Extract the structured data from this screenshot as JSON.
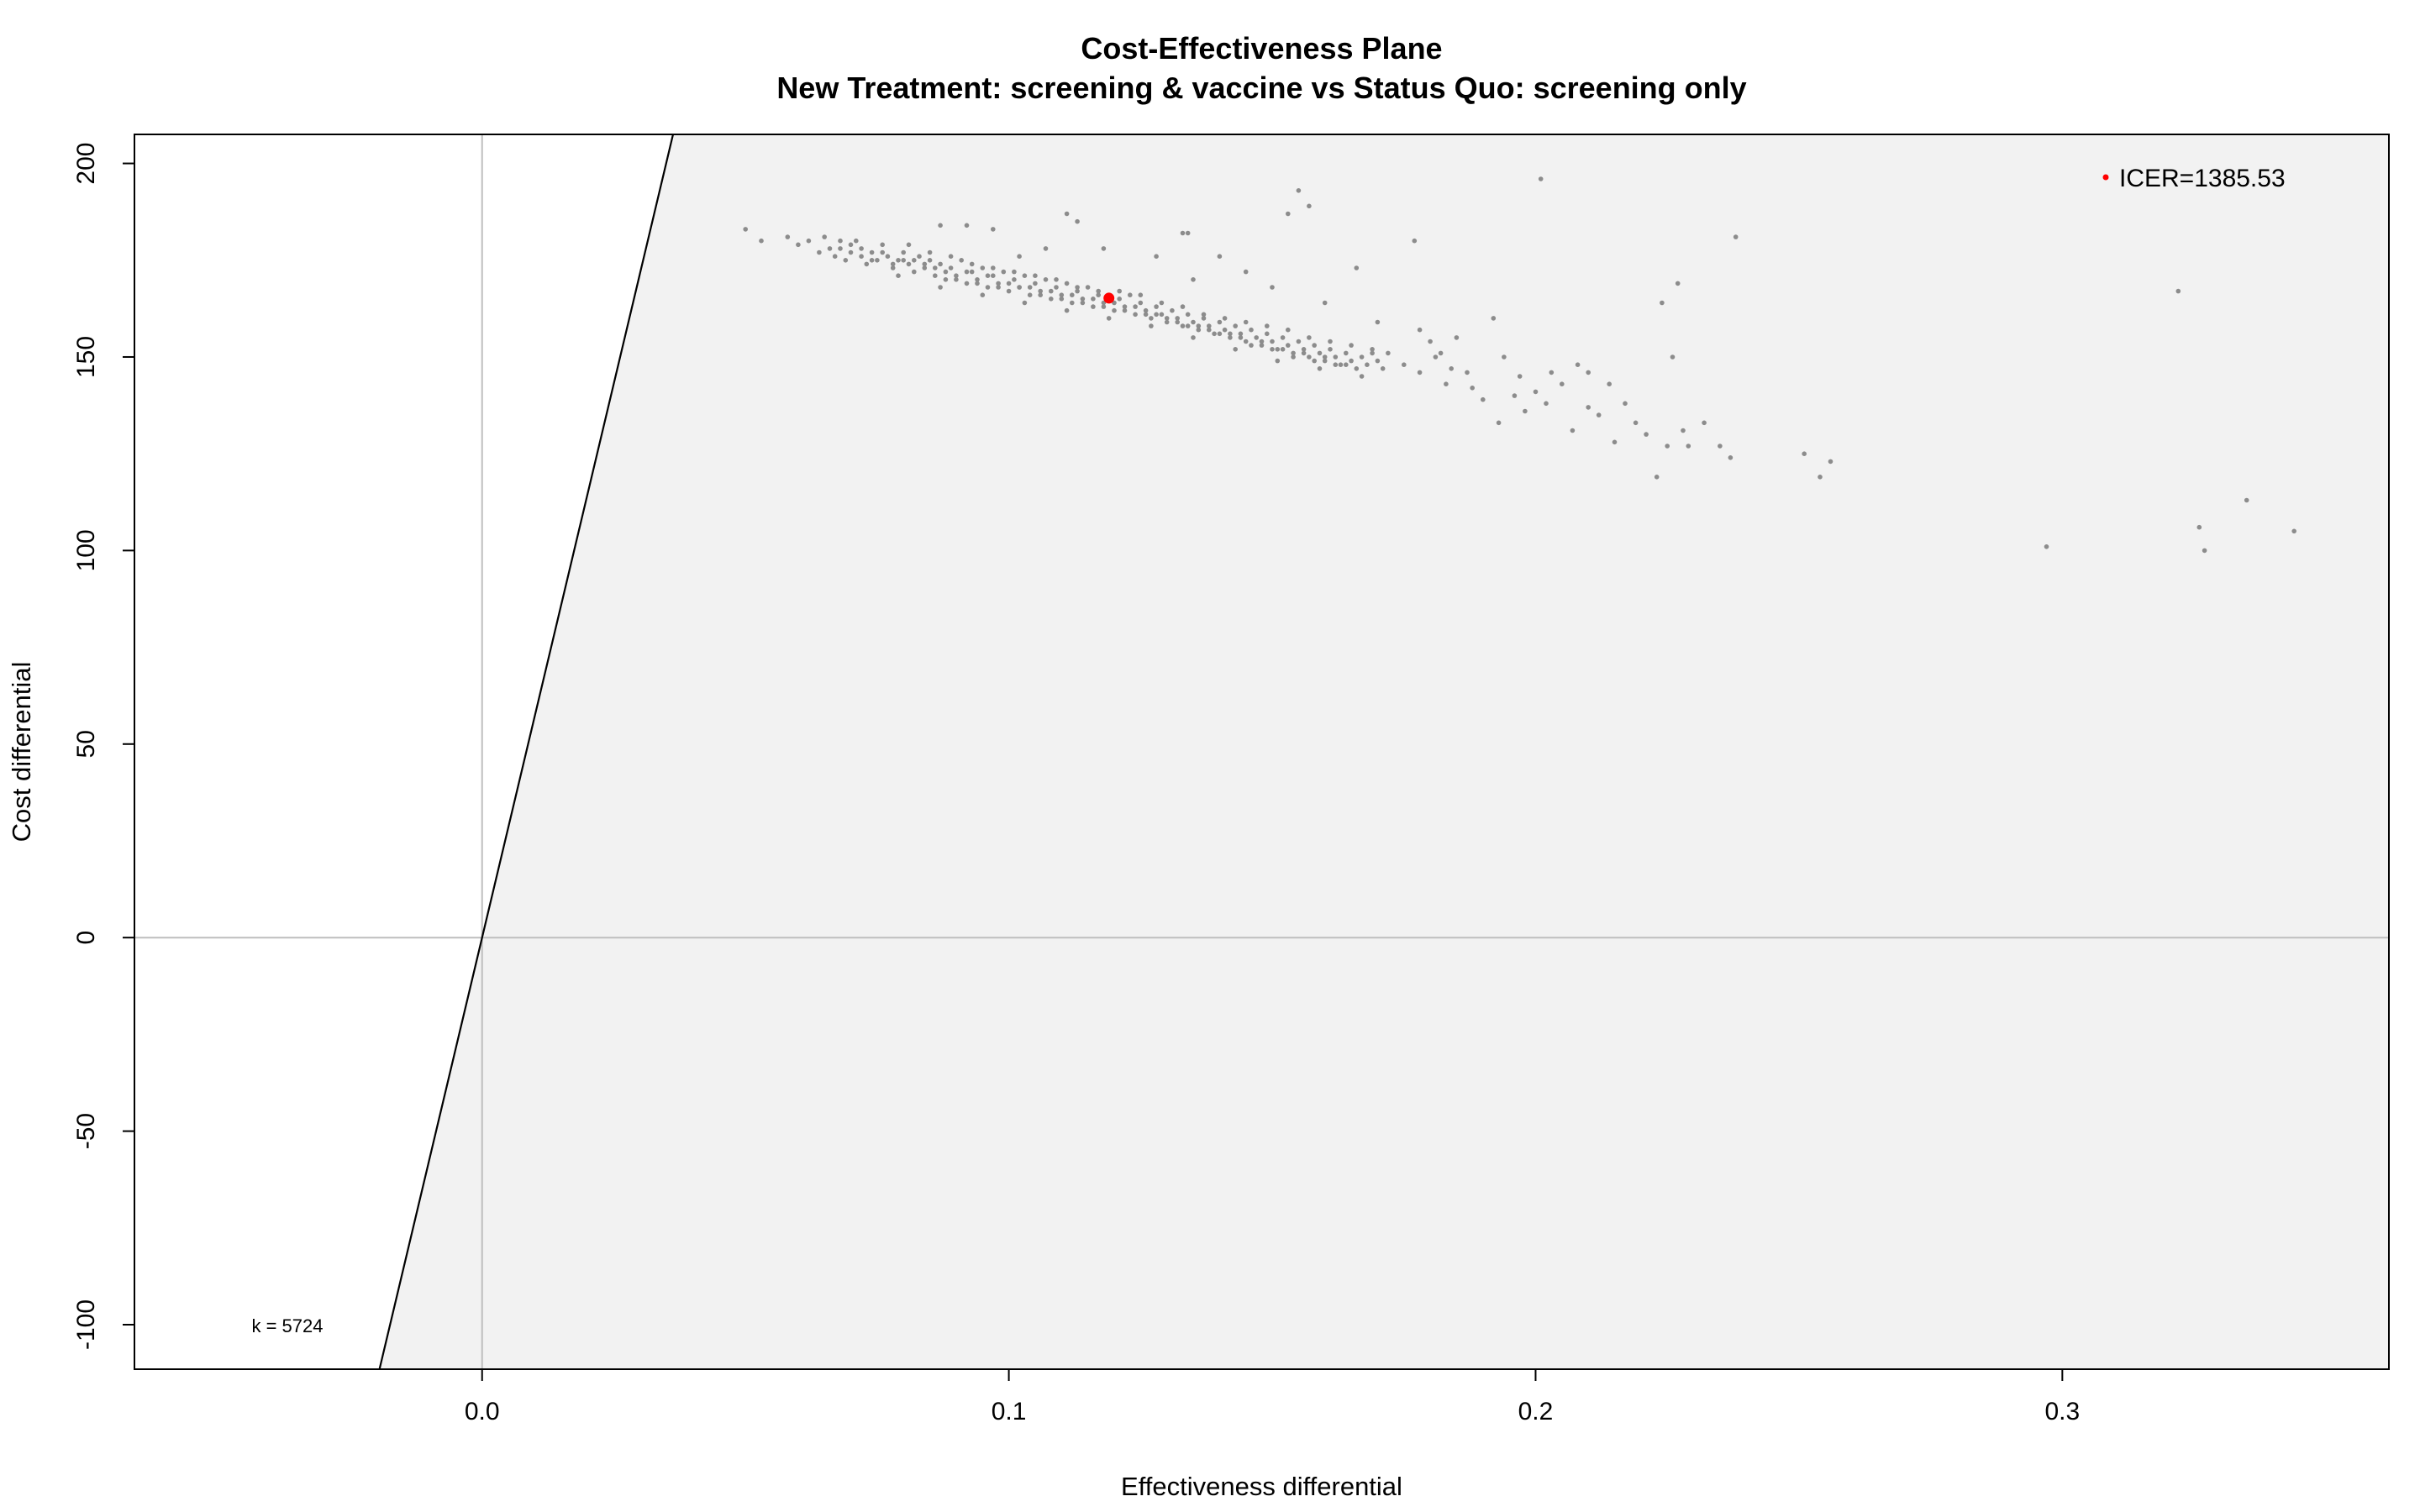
{
  "chart_data": {
    "type": "scatter",
    "title": "Cost-Effectiveness Plane",
    "subtitle": "New Treatment: screening & vaccine vs Status Quo: screening only",
    "xlabel": "Effectiveness differential",
    "ylabel": "Cost differential",
    "xlim": [
      -0.066,
      0.362
    ],
    "ylim": [
      -111.5,
      207.5
    ],
    "x_ticks": [
      0.0,
      0.1,
      0.2,
      0.3
    ],
    "x_tick_labels": [
      "0.0",
      "0.1",
      "0.2",
      "0.3"
    ],
    "y_ticks": [
      -100,
      -50,
      0,
      50,
      100,
      150,
      200
    ],
    "y_tick_labels": [
      "-100",
      "-50",
      "0",
      "50",
      "100",
      "150",
      "200"
    ],
    "wtp_k": 5724,
    "wtp_label": "k = 5724",
    "icer_label": "ICER=1385.53",
    "icer_point": {
      "x": 0.119,
      "y": 165.2
    },
    "colors": {
      "points": "#8c8c8c",
      "icer": "#ff0000",
      "acceptability_region": "#f2f2f2",
      "reference_lines": "#bebebe",
      "wtp_line": "#000000"
    },
    "grid": false,
    "series": [
      {
        "name": "",
        "points": [
          [
            0.05,
            183
          ],
          [
            0.053,
            180
          ],
          [
            0.058,
            181
          ],
          [
            0.06,
            179
          ],
          [
            0.062,
            180
          ],
          [
            0.064,
            177
          ],
          [
            0.065,
            181
          ],
          [
            0.066,
            178
          ],
          [
            0.067,
            176
          ],
          [
            0.068,
            178
          ],
          [
            0.069,
            175
          ],
          [
            0.07,
            177
          ],
          [
            0.071,
            180
          ],
          [
            0.072,
            176
          ],
          [
            0.073,
            174
          ],
          [
            0.074,
            177
          ],
          [
            0.075,
            175
          ],
          [
            0.076,
            179
          ],
          [
            0.077,
            176
          ],
          [
            0.078,
            173
          ],
          [
            0.079,
            175
          ],
          [
            0.08,
            177
          ],
          [
            0.081,
            174
          ],
          [
            0.082,
            172
          ],
          [
            0.083,
            176
          ],
          [
            0.084,
            173
          ],
          [
            0.085,
            175
          ],
          [
            0.086,
            171
          ],
          [
            0.087,
            174
          ],
          [
            0.088,
            170
          ],
          [
            0.089,
            173
          ],
          [
            0.09,
            171
          ],
          [
            0.091,
            175
          ],
          [
            0.092,
            169
          ],
          [
            0.093,
            172
          ],
          [
            0.094,
            170
          ],
          [
            0.095,
            173
          ],
          [
            0.096,
            168
          ],
          [
            0.097,
            171
          ],
          [
            0.098,
            169
          ],
          [
            0.099,
            172
          ],
          [
            0.1,
            167
          ],
          [
            0.101,
            170
          ],
          [
            0.102,
            168
          ],
          [
            0.103,
            171
          ],
          [
            0.104,
            166
          ],
          [
            0.105,
            169
          ],
          [
            0.106,
            167
          ],
          [
            0.107,
            170
          ],
          [
            0.108,
            165
          ],
          [
            0.109,
            168
          ],
          [
            0.11,
            166
          ],
          [
            0.111,
            169
          ],
          [
            0.112,
            164
          ],
          [
            0.113,
            167
          ],
          [
            0.114,
            165
          ],
          [
            0.115,
            168
          ],
          [
            0.116,
            163
          ],
          [
            0.117,
            166
          ],
          [
            0.118,
            164
          ],
          [
            0.12,
            162
          ],
          [
            0.121,
            165
          ],
          [
            0.122,
            163
          ],
          [
            0.123,
            166
          ],
          [
            0.124,
            161
          ],
          [
            0.125,
            164
          ],
          [
            0.126,
            162
          ],
          [
            0.127,
            160
          ],
          [
            0.128,
            163
          ],
          [
            0.129,
            161
          ],
          [
            0.13,
            159
          ],
          [
            0.131,
            162
          ],
          [
            0.132,
            160
          ],
          [
            0.133,
            158
          ],
          [
            0.134,
            161
          ],
          [
            0.135,
            159
          ],
          [
            0.136,
            157
          ],
          [
            0.137,
            160
          ],
          [
            0.138,
            158
          ],
          [
            0.139,
            156
          ],
          [
            0.14,
            159
          ],
          [
            0.141,
            157
          ],
          [
            0.142,
            155
          ],
          [
            0.143,
            158
          ],
          [
            0.144,
            156
          ],
          [
            0.145,
            154
          ],
          [
            0.146,
            157
          ],
          [
            0.147,
            155
          ],
          [
            0.148,
            153
          ],
          [
            0.149,
            156
          ],
          [
            0.15,
            154
          ],
          [
            0.151,
            152
          ],
          [
            0.152,
            155
          ],
          [
            0.153,
            153
          ],
          [
            0.154,
            151
          ],
          [
            0.155,
            154
          ],
          [
            0.156,
            152
          ],
          [
            0.157,
            150
          ],
          [
            0.158,
            153
          ],
          [
            0.159,
            151
          ],
          [
            0.16,
            149
          ],
          [
            0.161,
            152
          ],
          [
            0.162,
            150
          ],
          [
            0.163,
            148
          ],
          [
            0.164,
            151
          ],
          [
            0.165,
            149
          ],
          [
            0.166,
            147
          ],
          [
            0.167,
            150
          ],
          [
            0.168,
            148
          ],
          [
            0.169,
            152
          ],
          [
            0.17,
            149
          ],
          [
            0.171,
            147
          ],
          [
            0.172,
            151
          ],
          [
            0.07,
            179
          ],
          [
            0.072,
            178
          ],
          [
            0.074,
            175
          ],
          [
            0.076,
            177
          ],
          [
            0.078,
            174
          ],
          [
            0.08,
            175
          ],
          [
            0.082,
            175
          ],
          [
            0.084,
            174
          ],
          [
            0.086,
            173
          ],
          [
            0.088,
            172
          ],
          [
            0.09,
            170
          ],
          [
            0.092,
            172
          ],
          [
            0.094,
            169
          ],
          [
            0.096,
            171
          ],
          [
            0.098,
            168
          ],
          [
            0.1,
            169
          ],
          [
            0.102,
            168
          ],
          [
            0.104,
            168
          ],
          [
            0.106,
            166
          ],
          [
            0.108,
            167
          ],
          [
            0.11,
            165
          ],
          [
            0.112,
            166
          ],
          [
            0.114,
            164
          ],
          [
            0.116,
            165
          ],
          [
            0.118,
            163
          ],
          [
            0.12,
            164
          ],
          [
            0.122,
            162
          ],
          [
            0.124,
            163
          ],
          [
            0.126,
            161
          ],
          [
            0.128,
            161
          ],
          [
            0.13,
            160
          ],
          [
            0.132,
            159
          ],
          [
            0.134,
            158
          ],
          [
            0.136,
            158
          ],
          [
            0.138,
            157
          ],
          [
            0.14,
            156
          ],
          [
            0.142,
            156
          ],
          [
            0.144,
            155
          ],
          [
            0.146,
            153
          ],
          [
            0.148,
            154
          ],
          [
            0.15,
            152
          ],
          [
            0.152,
            152
          ],
          [
            0.154,
            150
          ],
          [
            0.156,
            151
          ],
          [
            0.158,
            149
          ],
          [
            0.16,
            150
          ],
          [
            0.162,
            148
          ],
          [
            0.164,
            148
          ],
          [
            0.068,
            180
          ],
          [
            0.081,
            179
          ],
          [
            0.085,
            177
          ],
          [
            0.089,
            176
          ],
          [
            0.093,
            174
          ],
          [
            0.097,
            173
          ],
          [
            0.101,
            172
          ],
          [
            0.105,
            171
          ],
          [
            0.109,
            170
          ],
          [
            0.113,
            168
          ],
          [
            0.117,
            167
          ],
          [
            0.121,
            167
          ],
          [
            0.125,
            166
          ],
          [
            0.129,
            164
          ],
          [
            0.133,
            163
          ],
          [
            0.137,
            161
          ],
          [
            0.141,
            160
          ],
          [
            0.145,
            159
          ],
          [
            0.149,
            158
          ],
          [
            0.153,
            157
          ],
          [
            0.157,
            155
          ],
          [
            0.161,
            154
          ],
          [
            0.165,
            153
          ],
          [
            0.169,
            151
          ],
          [
            0.079,
            171
          ],
          [
            0.087,
            168
          ],
          [
            0.095,
            166
          ],
          [
            0.103,
            164
          ],
          [
            0.111,
            162
          ],
          [
            0.119,
            160
          ],
          [
            0.127,
            158
          ],
          [
            0.135,
            155
          ],
          [
            0.143,
            152
          ],
          [
            0.151,
            149
          ],
          [
            0.159,
            147
          ],
          [
            0.167,
            145
          ],
          [
            0.175,
            148
          ],
          [
            0.178,
            146
          ],
          [
            0.181,
            150
          ],
          [
            0.184,
            147
          ],
          [
            0.087,
            184
          ],
          [
            0.092,
            184
          ],
          [
            0.097,
            183
          ],
          [
            0.102,
            176
          ],
          [
            0.107,
            178
          ],
          [
            0.111,
            187
          ],
          [
            0.113,
            185
          ],
          [
            0.118,
            178
          ],
          [
            0.128,
            176
          ],
          [
            0.133,
            182
          ],
          [
            0.134,
            182
          ],
          [
            0.135,
            170
          ],
          [
            0.14,
            176
          ],
          [
            0.145,
            172
          ],
          [
            0.15,
            168
          ],
          [
            0.153,
            187
          ],
          [
            0.155,
            193
          ],
          [
            0.157,
            189
          ],
          [
            0.16,
            164
          ],
          [
            0.166,
            173
          ],
          [
            0.17,
            159
          ],
          [
            0.177,
            180
          ],
          [
            0.178,
            157
          ],
          [
            0.18,
            154
          ],
          [
            0.182,
            151
          ],
          [
            0.185,
            155
          ],
          [
            0.188,
            142
          ],
          [
            0.19,
            139
          ],
          [
            0.192,
            160
          ],
          [
            0.193,
            133
          ],
          [
            0.194,
            150
          ],
          [
            0.197,
            145
          ],
          [
            0.198,
            136
          ],
          [
            0.2,
            141
          ],
          [
            0.201,
            196
          ],
          [
            0.202,
            138
          ],
          [
            0.203,
            146
          ],
          [
            0.205,
            143
          ],
          [
            0.207,
            131
          ],
          [
            0.208,
            148
          ],
          [
            0.21,
            137
          ],
          [
            0.212,
            135
          ],
          [
            0.215,
            128
          ],
          [
            0.217,
            138
          ],
          [
            0.219,
            133
          ],
          [
            0.221,
            130
          ],
          [
            0.223,
            119
          ],
          [
            0.224,
            164
          ],
          [
            0.225,
            127
          ],
          [
            0.226,
            150
          ],
          [
            0.227,
            169
          ],
          [
            0.228,
            131
          ],
          [
            0.229,
            127
          ],
          [
            0.232,
            133
          ],
          [
            0.235,
            127
          ],
          [
            0.237,
            124
          ],
          [
            0.238,
            181
          ],
          [
            0.251,
            125
          ],
          [
            0.254,
            119
          ],
          [
            0.256,
            123
          ],
          [
            0.297,
            101
          ],
          [
            0.322,
            167
          ],
          [
            0.326,
            106
          ],
          [
            0.327,
            100
          ],
          [
            0.335,
            113
          ],
          [
            0.344,
            105
          ],
          [
            0.21,
            146
          ],
          [
            0.214,
            143
          ],
          [
            0.196,
            140
          ],
          [
            0.187,
            146
          ],
          [
            0.183,
            143
          ]
        ]
      }
    ]
  }
}
